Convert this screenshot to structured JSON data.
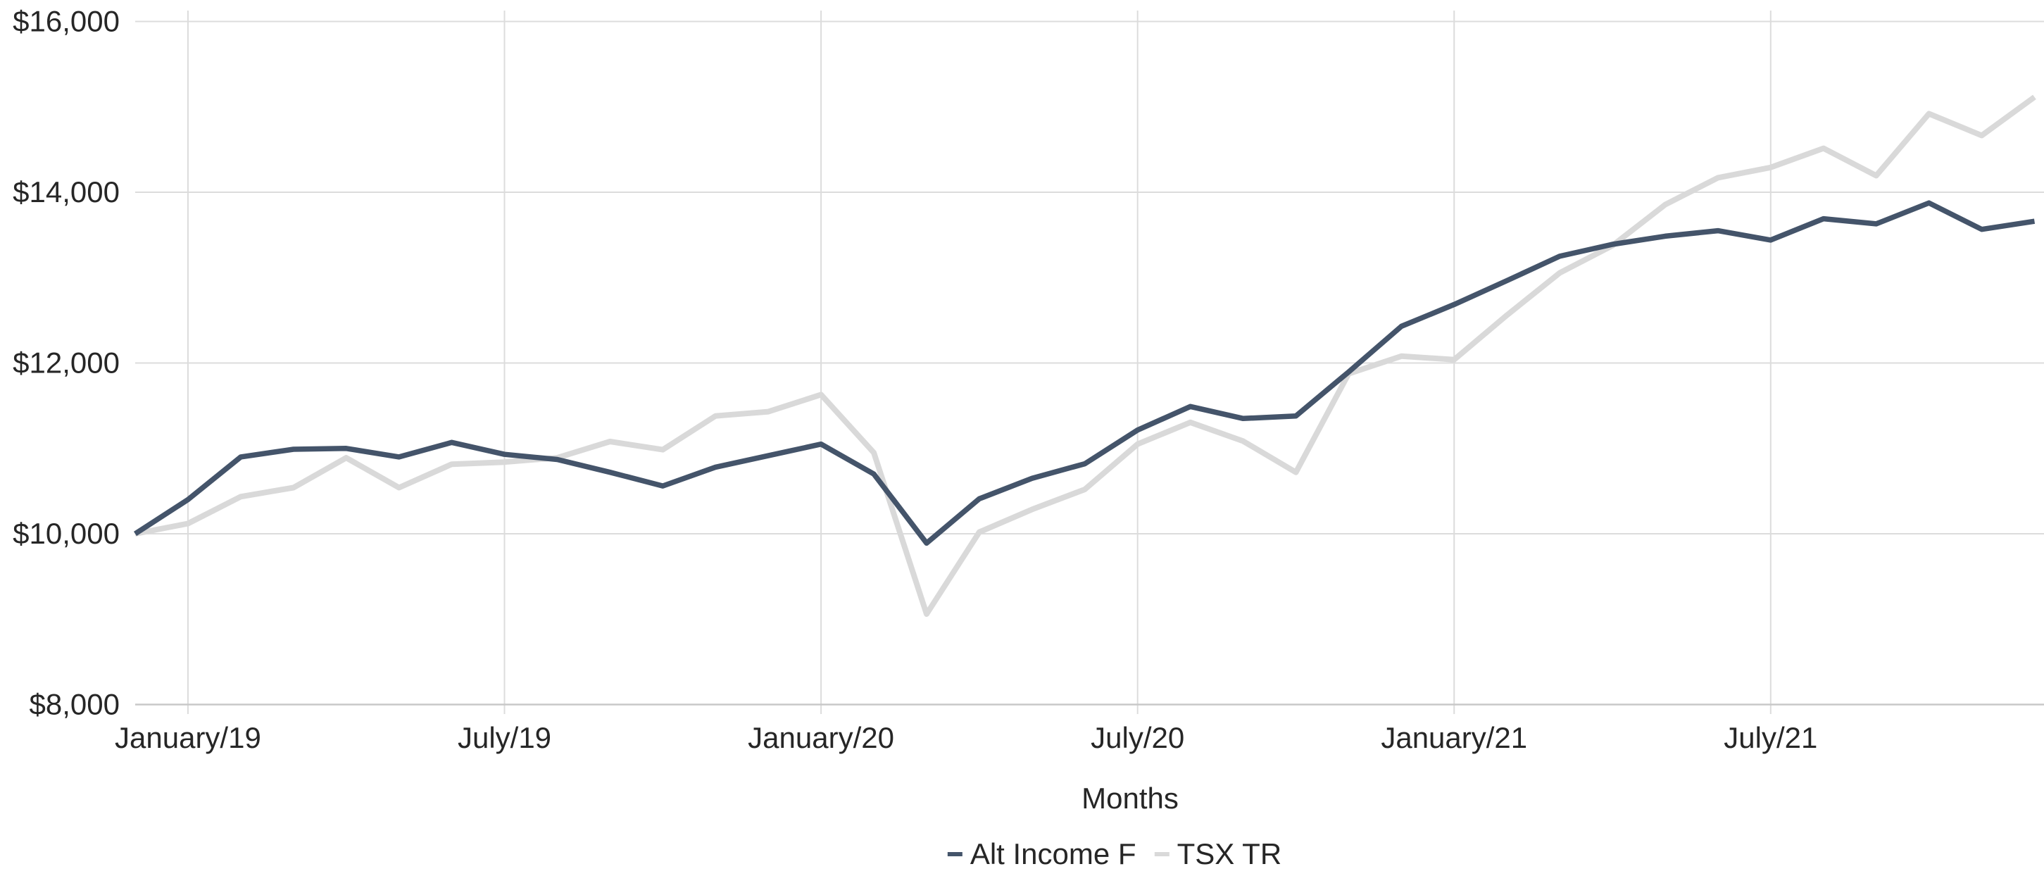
{
  "chart_data": {
    "type": "line",
    "title": "",
    "xlabel": "Months",
    "ylabel": "",
    "ylim": [
      8000,
      16000
    ],
    "grid": true,
    "legend_position": "bottom-center",
    "y_ticks": [
      {
        "value": 8000,
        "label": "$8,000"
      },
      {
        "value": 10000,
        "label": "$10,000"
      },
      {
        "value": 12000,
        "label": "$12,000"
      },
      {
        "value": 14000,
        "label": "$14,000"
      },
      {
        "value": 16000,
        "label": "$16,000"
      }
    ],
    "x_ticks": [
      {
        "index": 1,
        "label": "January/19"
      },
      {
        "index": 7,
        "label": "July/19"
      },
      {
        "index": 13,
        "label": "January/20"
      },
      {
        "index": 19,
        "label": "July/20"
      },
      {
        "index": 25,
        "label": "January/21"
      },
      {
        "index": 31,
        "label": "July/21"
      }
    ],
    "x": [
      "2018-12",
      "2019-01",
      "2019-02",
      "2019-03",
      "2019-04",
      "2019-05",
      "2019-06",
      "2019-07",
      "2019-08",
      "2019-09",
      "2019-10",
      "2019-11",
      "2019-12",
      "2020-01",
      "2020-02",
      "2020-03",
      "2020-04",
      "2020-05",
      "2020-06",
      "2020-07",
      "2020-08",
      "2020-09",
      "2020-10",
      "2020-11",
      "2020-12",
      "2021-01",
      "2021-02",
      "2021-03",
      "2021-04",
      "2021-05",
      "2021-06",
      "2021-07",
      "2021-08",
      "2021-09",
      "2021-10",
      "2021-11",
      "2021-12"
    ],
    "series": [
      {
        "name": "Alt Income F",
        "color": "#44546A",
        "values": [
          10000,
          10400,
          10900,
          10990,
          11000,
          10900,
          11070,
          10930,
          10870,
          10720,
          10560,
          10780,
          10915,
          11050,
          10700,
          9890,
          10410,
          10650,
          10820,
          11215,
          11490,
          11350,
          11380,
          11895,
          12430,
          12685,
          12965,
          13250,
          13390,
          13485,
          13550,
          13440,
          13690,
          13630,
          13875,
          13565,
          13660
        ]
      },
      {
        "name": "TSX TR",
        "color": "#D9D9D9",
        "values": [
          10000,
          10120,
          10435,
          10540,
          10890,
          10540,
          10815,
          10840,
          10890,
          11080,
          10985,
          11380,
          11430,
          11630,
          10950,
          9060,
          10020,
          10285,
          10520,
          11050,
          11305,
          11085,
          10720,
          11875,
          12080,
          12040,
          12560,
          13055,
          13375,
          13855,
          14170,
          14290,
          14515,
          14195,
          14920,
          14665,
          15115
        ]
      }
    ],
    "colors": {
      "background": "#FFFFFF",
      "gridline": "#DCDCDC",
      "axis_line": "#C8C8C8",
      "tick_text": "#262626"
    }
  }
}
